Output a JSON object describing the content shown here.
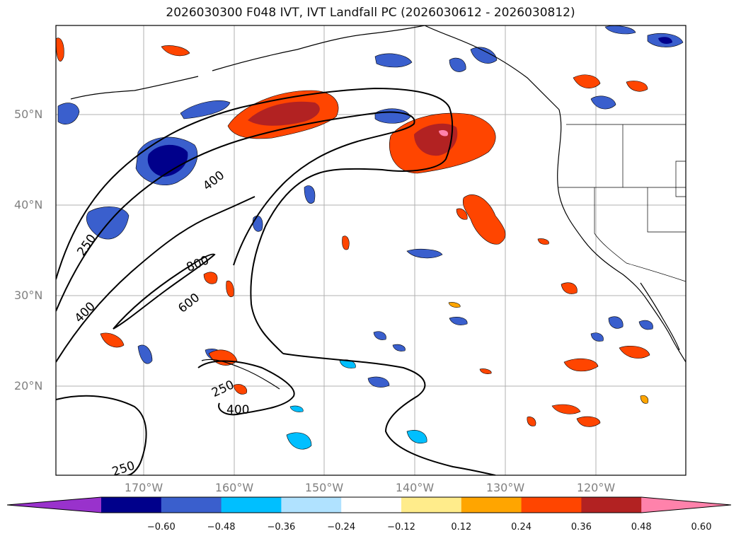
{
  "title": "2026030300 F048 IVT, IVT Landfall PC (2026030612 - 2026030812)",
  "lat_labels": [
    "50°N",
    "40°N",
    "30°N",
    "20°N"
  ],
  "lon_labels": [
    "170°W",
    "160°W",
    "150°W",
    "140°W",
    "130°W",
    "120°W"
  ],
  "contour_labels": [
    "400",
    "250",
    "800",
    "400",
    "600",
    "250",
    "400",
    "250"
  ],
  "colorbar": {
    "ticks": [
      "−0.60",
      "−0.48",
      "−0.36",
      "−0.24",
      "−0.12",
      "0.12",
      "0.24",
      "0.36",
      "0.48",
      "0.60"
    ],
    "colors": [
      "#9932CC",
      "#00008B",
      "#3A5FCD",
      "#00BFFF",
      "#B0E2FF",
      "#FFFFFF",
      "#FFEC8B",
      "#FFA500",
      "#FF4500",
      "#B22222",
      "#FF82AB"
    ]
  }
}
